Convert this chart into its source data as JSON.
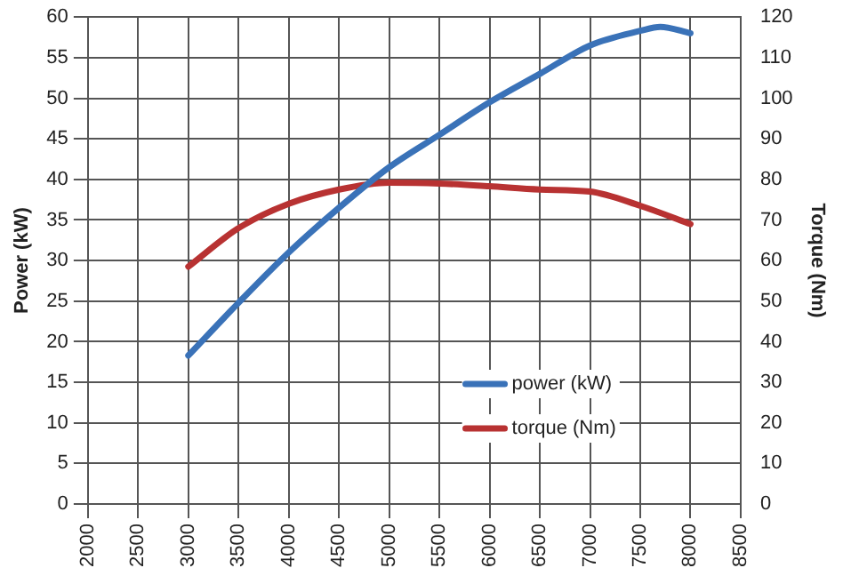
{
  "chart_data": {
    "type": "line",
    "ylabel": "Power (kW)",
    "y2label": "Torque (Nm)",
    "xlim": [
      2000,
      8500
    ],
    "xticks": [
      2000,
      2500,
      3000,
      3500,
      4000,
      4500,
      5000,
      5500,
      6000,
      6500,
      7000,
      7500,
      8000,
      8500
    ],
    "ylim": [
      0,
      60
    ],
    "yticks": [
      0,
      5,
      10,
      15,
      20,
      25,
      30,
      35,
      40,
      45,
      50,
      55,
      60
    ],
    "y2lim": [
      0,
      120
    ],
    "y2ticks": [
      0,
      10,
      20,
      30,
      40,
      50,
      60,
      70,
      80,
      90,
      100,
      110,
      120
    ],
    "grid": true,
    "legend": "bottom right",
    "marker": "none",
    "line_style": "solid",
    "series": [
      {
        "name": "power (kW)",
        "color": "#3a72b8",
        "x": [
          3000,
          3500,
          4000,
          4500,
          5000,
          5500,
          6000,
          6500,
          7000,
          7500,
          7700,
          8000
        ],
        "values": [
          18.3,
          24.8,
          31,
          36.5,
          41.5,
          45.5,
          49.5,
          53,
          56.5,
          58.3,
          58.8,
          58
        ]
      },
      {
        "name": "torque (Nm)",
        "color": "#b83232",
        "axis": "y2",
        "x": [
          3000,
          3500,
          4000,
          4500,
          5000,
          5500,
          6000,
          6500,
          7000,
          7500,
          8000
        ],
        "values": [
          58.5,
          68,
          74,
          77.5,
          79.2,
          79,
          78.3,
          77.5,
          77,
          73.5,
          69
        ]
      }
    ]
  }
}
